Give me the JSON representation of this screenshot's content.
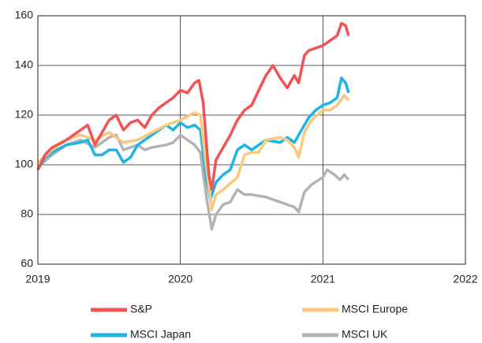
{
  "chart_data": {
    "type": "line",
    "xlim": [
      2019,
      2022
    ],
    "xticks": [
      2019,
      2020,
      2021,
      2022
    ],
    "ylim": [
      60,
      160
    ],
    "yticks": [
      60,
      80,
      100,
      120,
      140,
      160
    ],
    "grid": true,
    "legend": "bottom",
    "series": [
      {
        "name": "S&P",
        "color": "#f05454",
        "x": [
          2019.0,
          2019.05,
          2019.1,
          2019.2,
          2019.3,
          2019.35,
          2019.4,
          2019.45,
          2019.5,
          2019.55,
          2019.6,
          2019.65,
          2019.7,
          2019.75,
          2019.8,
          2019.85,
          2019.9,
          2019.95,
          2020.0,
          2020.05,
          2020.1,
          2020.13,
          2020.16,
          2020.2,
          2020.22,
          2020.25,
          2020.3,
          2020.35,
          2020.4,
          2020.45,
          2020.5,
          2020.55,
          2020.6,
          2020.65,
          2020.7,
          2020.75,
          2020.8,
          2020.83,
          2020.87,
          2020.9,
          2020.95,
          2021.0,
          2021.05,
          2021.1,
          2021.13,
          2021.16,
          2021.18
        ],
        "values": [
          98,
          104,
          107,
          110,
          114,
          116,
          108,
          113,
          118,
          120,
          114,
          117,
          118,
          115,
          120,
          123,
          125,
          127,
          130,
          129,
          133,
          134,
          125,
          96,
          90,
          102,
          107,
          112,
          118,
          122,
          124,
          130,
          136,
          140,
          135,
          131,
          136,
          133,
          144,
          146,
          147,
          148,
          150,
          152,
          157,
          156,
          152
        ]
      },
      {
        "name": "MSCI Europe",
        "color": "#f8c97f",
        "x": [
          2019.0,
          2019.1,
          2019.2,
          2019.3,
          2019.4,
          2019.5,
          2019.6,
          2019.7,
          2019.8,
          2019.9,
          2020.0,
          2020.1,
          2020.14,
          2020.18,
          2020.22,
          2020.25,
          2020.3,
          2020.4,
          2020.45,
          2020.5,
          2020.55,
          2020.6,
          2020.7,
          2020.75,
          2020.8,
          2020.83,
          2020.87,
          2020.92,
          2021.0,
          2021.05,
          2021.1,
          2021.15,
          2021.18
        ],
        "values": [
          101,
          106,
          110,
          112,
          110,
          113,
          109,
          110,
          113,
          116,
          118,
          121,
          120,
          100,
          82,
          88,
          90,
          95,
          104,
          105,
          105,
          110,
          111,
          110,
          107,
          103,
          113,
          118,
          122,
          122,
          124,
          128,
          126
        ]
      },
      {
        "name": "MSCI Japan",
        "color": "#1eb4e6",
        "x": [
          2019.0,
          2019.05,
          2019.1,
          2019.2,
          2019.3,
          2019.35,
          2019.4,
          2019.45,
          2019.5,
          2019.55,
          2019.6,
          2019.65,
          2019.7,
          2019.8,
          2019.9,
          2019.95,
          2020.0,
          2020.05,
          2020.1,
          2020.14,
          2020.18,
          2020.21,
          2020.25,
          2020.3,
          2020.35,
          2020.4,
          2020.45,
          2020.5,
          2020.55,
          2020.6,
          2020.7,
          2020.75,
          2020.8,
          2020.85,
          2020.9,
          2020.95,
          2021.0,
          2021.05,
          2021.1,
          2021.13,
          2021.16,
          2021.18
        ],
        "values": [
          98,
          103,
          105,
          108,
          109,
          110,
          104,
          104,
          106,
          106,
          101,
          103,
          108,
          112,
          116,
          114,
          117,
          115,
          116,
          114,
          95,
          86,
          93,
          96,
          98,
          106,
          108,
          106,
          108,
          110,
          109,
          111,
          109,
          114,
          119,
          122,
          124,
          125,
          127,
          135,
          133,
          129
        ]
      },
      {
        "name": "MSCI UK",
        "color": "#b3b3b3",
        "x": [
          2019.0,
          2019.1,
          2019.2,
          2019.3,
          2019.4,
          2019.5,
          2019.55,
          2019.6,
          2019.7,
          2019.75,
          2019.8,
          2019.9,
          2019.95,
          2020.0,
          2020.05,
          2020.1,
          2020.14,
          2020.18,
          2020.22,
          2020.25,
          2020.3,
          2020.35,
          2020.4,
          2020.45,
          2020.5,
          2020.6,
          2020.7,
          2020.8,
          2020.83,
          2020.87,
          2020.92,
          2021.0,
          2021.03,
          2021.08,
          2021.12,
          2021.15,
          2021.18
        ],
        "values": [
          99,
          104,
          108,
          110,
          107,
          111,
          112,
          106,
          108,
          106,
          107,
          108,
          109,
          112,
          110,
          108,
          105,
          88,
          74,
          80,
          84,
          85,
          90,
          88,
          88,
          87,
          85,
          83,
          81,
          89,
          92,
          95,
          98,
          96,
          94,
          96,
          94
        ]
      }
    ]
  }
}
